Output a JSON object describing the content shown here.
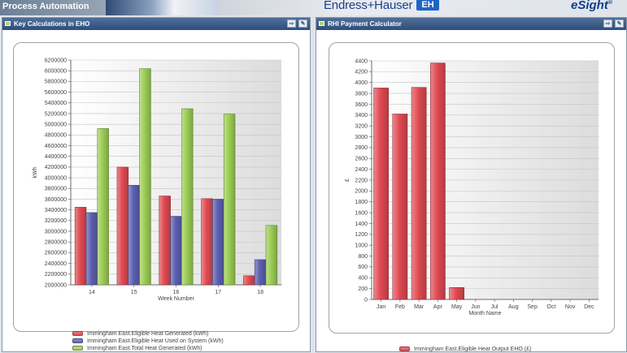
{
  "banner": {
    "section_label": "Process Automation",
    "brand": "Endress+Hauser",
    "brand_logo": "EH",
    "product": "eSight",
    "product_mark": "®"
  },
  "left_panel": {
    "title": "Key Calculations in EHO",
    "chart_data": {
      "type": "bar",
      "categories": [
        "14",
        "15",
        "16",
        "17",
        "18"
      ],
      "xlabel": "Week Number",
      "ylabel": "kWh",
      "ylim": [
        2000000,
        6200000
      ],
      "ytick_step": 200000,
      "grid": true,
      "legend_position": "bottom",
      "series": [
        {
          "name": "Immingham East.Eligible Heat Generated (kWh)",
          "color": "#e04a52",
          "values": [
            3450000,
            4200000,
            3660000,
            3610000,
            2170000
          ]
        },
        {
          "name": "Immingham East.Eligible Heat Used on System  (kWh)",
          "color": "#5c5fb0",
          "values": [
            3350000,
            3860000,
            3280000,
            3600000,
            2470000
          ]
        },
        {
          "name": "Immingham East.Total Heat Generated  (kWh)",
          "color": "#9ccd54",
          "values": [
            4920000,
            6040000,
            5290000,
            5190000,
            3110000
          ]
        }
      ]
    }
  },
  "right_panel": {
    "title": "RHI Payment Calculator",
    "chart_data": {
      "type": "bar",
      "categories": [
        "Jan",
        "Feb",
        "Mar",
        "Apr",
        "May",
        "Jun",
        "Jul",
        "Aug",
        "Sep",
        "Oct",
        "Nov",
        "Dec"
      ],
      "xlabel": "Month Name",
      "ylabel": "£",
      "ylim": [
        0,
        4400
      ],
      "ytick_step": 200,
      "grid": true,
      "legend_position": "bottom",
      "series": [
        {
          "name": "Immingham East.Eligible Heat Output EHO (£)",
          "color": "#e04a52",
          "values": [
            3900,
            3420,
            3910,
            4360,
            220,
            0,
            0,
            0,
            0,
            0,
            0,
            0
          ]
        }
      ]
    }
  }
}
